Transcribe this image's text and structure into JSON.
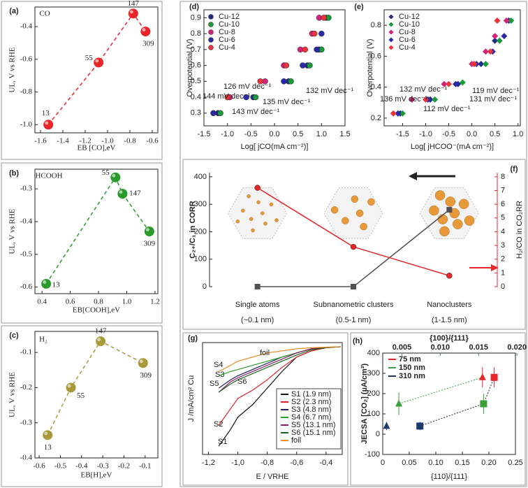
{
  "chart_data": [
    {
      "type": "line",
      "panel": "(a)",
      "title": "CO",
      "x": [
        -1.53,
        -1.08,
        -0.77,
        -0.66
      ],
      "values": [
        -1.0,
        -0.62,
        -0.32,
        -0.43
      ],
      "point_labels": [
        "13",
        "55",
        "147",
        "309"
      ],
      "color": "#e8262a",
      "line_style": "dashed",
      "marker": "ball",
      "xlim": [
        -1.65,
        -0.55
      ],
      "xticks": [
        -1.6,
        -1.4,
        -1.2,
        {
          "value": -1,
          "label": "-1.0"
        },
        -0.8,
        -0.6
      ],
      "ylim": [
        -1.05,
        -0.28
      ],
      "yticks": [
        {
          "value": -1,
          "label": "-1.0"
        },
        -0.8,
        -0.6,
        -0.4
      ],
      "xlabel": "EB [CO],eV",
      "ylabel": "UL, V vs RHE"
    },
    {
      "type": "line",
      "panel": "(b)",
      "title": "HCOOH",
      "x": [
        0.43,
        0.92,
        0.97,
        1.16
      ],
      "values": [
        -0.59,
        -0.265,
        -0.315,
        -0.43
      ],
      "point_labels": [
        "13",
        "55",
        "147",
        "309"
      ],
      "color": "#2a9a2a",
      "line_style": "dashed",
      "marker": "ball",
      "xlim": [
        0.35,
        1.22
      ],
      "xticks": [
        0.4,
        0.6,
        0.8,
        {
          "value": 1,
          "label": "1.0"
        },
        1.2
      ],
      "ylim": [
        -0.62,
        -0.24
      ],
      "yticks": [
        -0.6,
        -0.5,
        -0.4,
        -0.3
      ],
      "xlabel": "EB[COOH],eV",
      "ylabel": "UL, V vs RHE"
    },
    {
      "type": "line",
      "panel": "(c)",
      "title": "H₂",
      "x": [
        -0.56,
        -0.45,
        -0.31,
        -0.11
      ],
      "values": [
        -0.335,
        -0.2,
        -0.068,
        -0.13
      ],
      "point_labels": [
        "13",
        "55",
        "147",
        "309"
      ],
      "color": "#a89a3a",
      "line_style": "dashed",
      "marker": "ball",
      "xlim": [
        -0.62,
        -0.04
      ],
      "xticks": [
        -0.6,
        -0.5,
        -0.4,
        -0.3,
        -0.2,
        -0.1
      ],
      "ylim": [
        -0.4,
        -0.04
      ],
      "yticks": [
        -0.4,
        -0.3,
        -0.2,
        -0.1
      ],
      "xlabel": "EB[H],eV",
      "ylabel": "UL, V vs RHE"
    },
    {
      "type": "scatter",
      "panel": "(d)",
      "marker": "circle",
      "series": [
        {
          "name": "Cu-12",
          "color": "#1f2a8a",
          "x": [
            -1.2,
            -0.45,
            0.3,
            0.7,
            0.95,
            1.1
          ],
          "values": [
            0.3,
            0.4,
            0.5,
            0.6,
            0.7,
            0.9
          ]
        },
        {
          "name": "Cu-10",
          "color": "#1a9a3a",
          "x": [
            -1.15,
            -0.4,
            0.35,
            0.75,
            1.0,
            1.15
          ],
          "values": [
            0.3,
            0.4,
            0.5,
            0.6,
            0.7,
            0.9
          ]
        },
        {
          "name": "Cu-8",
          "color": "#d4237a",
          "x": [
            -0.95,
            -0.2,
            0.2,
            0.55,
            0.8,
            0.95
          ],
          "values": [
            0.4,
            0.5,
            0.6,
            0.7,
            0.8,
            0.9
          ]
        },
        {
          "name": "Cu-6",
          "color": "#2a2aa8",
          "x": [
            -1.3,
            -0.6,
            0.2,
            0.6,
            0.9,
            1.0
          ],
          "values": [
            0.3,
            0.4,
            0.5,
            0.6,
            0.7,
            0.8
          ]
        },
        {
          "name": "Cu-4",
          "color": "#e8343a",
          "x": [
            -1.0,
            -0.3,
            0.25,
            0.65,
            0.85,
            1.05
          ],
          "values": [
            0.4,
            0.5,
            0.6,
            0.7,
            0.8,
            0.9
          ]
        }
      ],
      "annotations": [
        "126 mV dec⁻¹",
        "144 mV dec⁻¹",
        "132 mV dec⁻¹",
        "135 mV dec⁻¹",
        "143 mV dec⁻¹"
      ],
      "xlim": [
        -1.5,
        1.5
      ],
      "xticks": [
        -1.5,
        {
          "value": -1,
          "label": "-1.0"
        },
        -0.5,
        {
          "value": 0,
          "label": "0.0"
        },
        0.5,
        {
          "value": 1,
          "label": "1.0"
        },
        1.5
      ],
      "ylim": [
        0.22,
        0.95
      ],
      "yticks": [
        0.3,
        0.4,
        0.5,
        0.6,
        0.7,
        0.8,
        0.9
      ],
      "xlabel": "Log[ jCO(mA cm⁻²)]",
      "ylabel": "Overpotential (V)"
    },
    {
      "type": "scatter",
      "panel": "(e)",
      "marker": "diamond",
      "series": [
        {
          "name": "Cu-12",
          "color": "#1f2a8a",
          "x": [
            -1.55,
            -0.9,
            -0.3,
            0.2,
            0.5,
            0.8
          ],
          "values": [
            0.23,
            0.32,
            0.42,
            0.55,
            0.7,
            0.83
          ]
        },
        {
          "name": "Cu-10",
          "color": "#1a9a3a",
          "x": [
            -1.5,
            -0.8,
            -0.2,
            0.3,
            0.6,
            0.85
          ],
          "values": [
            0.23,
            0.32,
            0.43,
            0.55,
            0.7,
            0.83
          ]
        },
        {
          "name": "Cu-8",
          "color": "#d4237a",
          "x": [
            -1.3,
            -0.6,
            0.0,
            0.3,
            0.5,
            0.75
          ],
          "values": [
            0.32,
            0.42,
            0.55,
            0.63,
            0.73,
            0.83
          ]
        },
        {
          "name": "Cu-6",
          "color": "#2a2aa8",
          "x": [
            -1.6,
            -0.95,
            -0.35,
            0.1,
            0.45,
            0.7
          ],
          "values": [
            0.23,
            0.32,
            0.42,
            0.55,
            0.63,
            0.73
          ]
        },
        {
          "name": "Cu-4",
          "color": "#e8343a",
          "x": [
            -1.7,
            -1.0,
            -0.5,
            0.05,
            0.4,
            0.55
          ],
          "values": [
            0.23,
            0.32,
            0.42,
            0.55,
            0.63,
            0.83
          ]
        }
      ],
      "annotations": [
        "132 mV dec⁻¹",
        "119 mV dec⁻¹",
        "136 mV dec⁻¹",
        "131 mV dec⁻¹",
        "112 mV dec⁻¹"
      ],
      "xlim": [
        -1.9,
        1.05
      ],
      "xticks": [
        -1.5,
        {
          "value": -1,
          "label": "-1.0"
        },
        -0.5,
        {
          "value": 0,
          "label": "0.0"
        },
        0.5,
        {
          "value": 1,
          "label": "1.0"
        }
      ],
      "ylim": [
        0.15,
        0.9
      ],
      "yticks": [
        0.2,
        0.4,
        0.6,
        0.8
      ],
      "xlabel": "Log[ jHCOO⁻(mA cm⁻²)]",
      "ylabel": "Overpotential (V)"
    },
    {
      "type": "line",
      "panel": "(f)",
      "categories": [
        "Single atoms",
        "Subnanometric clusters",
        "Nanoclusters"
      ],
      "category_sizes": [
        "(~0.1 nm)",
        "(0.5-1 nm)",
        "(1-1.5 nm)"
      ],
      "series": [
        {
          "color": "#505050",
          "values": [
            0,
            0,
            280
          ],
          "marker": "square"
        },
        {
          "color": "#e8262a",
          "values": [
            7.2,
            2.9,
            0.8
          ],
          "marker": "circle",
          "axis": "y2"
        }
      ],
      "ylim": [
        0,
        415
      ],
      "yticks": [
        0,
        100,
        200,
        300,
        400
      ],
      "y2lim": [
        0,
        8.3
      ],
      "y2ticks": [
        0,
        1,
        2,
        3,
        4,
        5,
        6,
        7,
        8
      ],
      "y2color": "#e8262a",
      "ylabel": "C₂₊/C₁ in CORR",
      "y2label": "H₂/CO in CO₂RR"
    },
    {
      "type": "line",
      "panel": "(g)",
      "x": [
        -1.13,
        -1.05,
        -1.0,
        -0.9,
        -0.8,
        -0.7,
        -0.6,
        -0.5,
        -0.4,
        -0.3
      ],
      "series": [
        {
          "name": "S1 (1.9 nm)",
          "label": "S1",
          "color": "#111111",
          "values": [
            -48,
            -40,
            -34,
            -28,
            -20,
            -12,
            -5,
            -2,
            -0.5,
            0
          ]
        },
        {
          "name": "S2 (2.3 nm)",
          "label": "S2",
          "color": "#e0202a",
          "values": [
            -38,
            -30,
            -25,
            -21,
            -16,
            -10,
            -5,
            -2,
            -0.5,
            0
          ]
        },
        {
          "name": "S3 (4.8 nm)",
          "label": "S3",
          "color": "#1c1c5c",
          "values": [
            -20,
            -16,
            -14,
            -11,
            -8,
            -5,
            -3,
            -1,
            -0.3,
            0
          ]
        },
        {
          "name": "S4 (6.7 nm)",
          "label": "S4",
          "color": "#2aa02a",
          "values": [
            -14,
            -12,
            -11,
            -9,
            -7,
            -5,
            -3,
            -1,
            -0.3,
            0
          ]
        },
        {
          "name": "S5 (13.1 nm)",
          "label": "S5",
          "color": "#8b1a6b",
          "values": [
            -22,
            -17,
            -15,
            -12,
            -9,
            -6,
            -3,
            -1,
            -0.3,
            0
          ]
        },
        {
          "name": "S6 (15.1 nm)",
          "label": "S6",
          "color": "#1a6a1a",
          "values": [
            -22,
            -18,
            -16,
            -13,
            -10,
            -7,
            -4,
            -1.5,
            -0.4,
            0
          ]
        },
        {
          "name": "foil",
          "label": "foil",
          "color": "#e8902a",
          "values": [
            -12,
            -9,
            -7,
            -5,
            -3,
            -2,
            -1,
            -0.5,
            -0.2,
            0
          ]
        }
      ],
      "xlim": [
        -1.24,
        -0.29
      ],
      "xticks": [
        {
          "value": -1.2,
          "label": "-1,2"
        },
        {
          "value": -1,
          "label": "-1,0"
        },
        {
          "value": -0.8,
          "label": "-0,8"
        },
        {
          "value": -0.6,
          "label": "-0,6"
        },
        {
          "value": -0.4,
          "label": "-0,4"
        }
      ],
      "ylim": [
        -52,
        2
      ],
      "xlabel": "E / VRHE",
      "ylabel": "J /mA/cm² Cu"
    },
    {
      "type": "scatter",
      "panel": "(h)",
      "marker": "square",
      "marker_top": "triangle",
      "series": [
        {
          "name": "75 nm",
          "color": "#e8262a",
          "x": [
            0.21
          ],
          "values": [
            280
          ],
          "errors": [
            50
          ],
          "x_top": [
            0.0155
          ],
          "values_top": [
            280
          ],
          "errors_top": [
            50
          ]
        },
        {
          "name": "150 nm",
          "color": "#3aa03a",
          "x": [
            0.19
          ],
          "values": [
            150
          ],
          "errors": [
            50
          ],
          "x_top": [
            0.0046
          ],
          "values_top": [
            150
          ],
          "errors_top": [
            55
          ]
        },
        {
          "name": "310 nm",
          "color": "#1f3a6a",
          "x": [
            0.07
          ],
          "values": [
            40
          ],
          "errors": [
            20
          ],
          "x_top": [
            0.003
          ],
          "values_top": [
            40
          ],
          "errors_top": [
            20
          ]
        }
      ],
      "xlim": [
        0,
        0.25
      ],
      "xticks": [
        0,
        0.05,
        {
          "value": 0.1,
          "label": "0.10"
        },
        0.15,
        {
          "value": 0.2,
          "label": "0.20"
        },
        0.25
      ],
      "x2lim": [
        0.0025,
        0.0198
      ],
      "x2ticks": [
        0.005,
        {
          "value": 0.01,
          "label": "0.010"
        },
        0.015,
        {
          "value": 0.02,
          "label": "0.020"
        }
      ],
      "x2color": "#3a8a8a",
      "ylim": [
        -100,
        400
      ],
      "yticks": [
        -100,
        0,
        100,
        200,
        300,
        400
      ],
      "xlabel": "{110}/{111}",
      "x2label": "{100}/{111}",
      "ylabel": "JECSA [CO₂] (µA/cm²)"
    }
  ]
}
